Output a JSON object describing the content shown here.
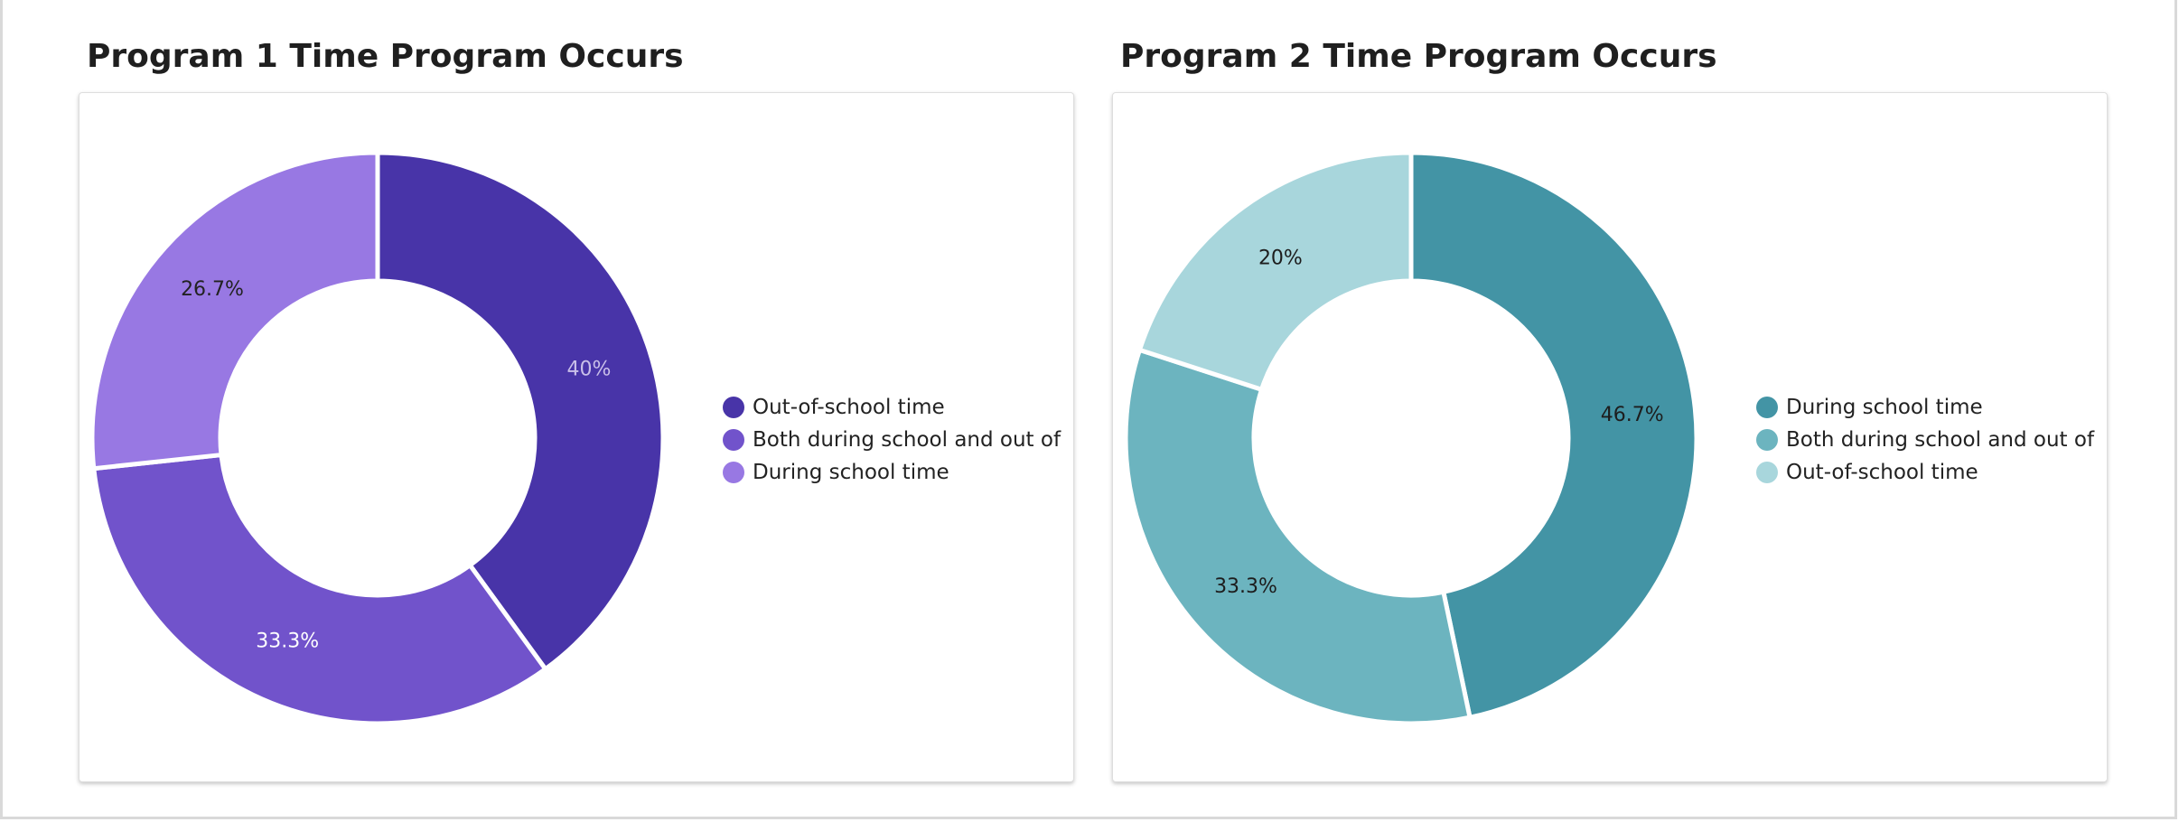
{
  "chart_data": [
    {
      "type": "pie",
      "title": "Program 1 Time Program Occurs",
      "categories": [
        "Out-of-school time",
        "Both during school and out of",
        "During school time"
      ],
      "values": [
        40,
        33.3,
        26.7
      ],
      "value_labels": [
        "40%",
        "33.3%",
        "26.7%"
      ],
      "colors": [
        "#4834a8",
        "#7153cb",
        "#9878e3"
      ],
      "label_colors": [
        "#c9bfe9",
        "#ffffff",
        "#222222"
      ],
      "legend_position": "right",
      "donut": true
    },
    {
      "type": "pie",
      "title": "Program 2 Time Program Occurs",
      "categories": [
        "During school time",
        "Both during school and out of",
        "Out-of-school time"
      ],
      "values": [
        46.7,
        33.3,
        20
      ],
      "value_labels": [
        "46.7%",
        "33.3%",
        "20%"
      ],
      "colors": [
        "#4394a5",
        "#6cb4bf",
        "#a8d6dc"
      ],
      "label_colors": [
        "#1d1d1d",
        "#1d1d1d",
        "#1d1d1d"
      ],
      "legend_position": "right",
      "donut": true
    }
  ]
}
